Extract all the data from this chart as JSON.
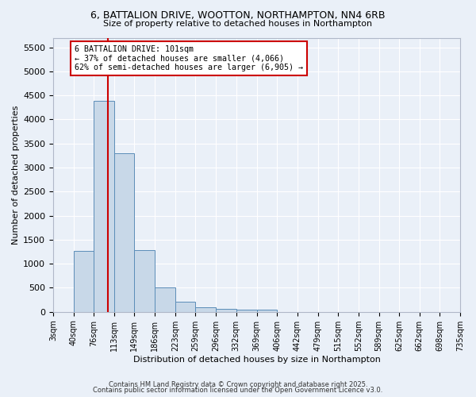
{
  "title": "6, BATTALION DRIVE, WOOTTON, NORTHAMPTON, NN4 6RB",
  "subtitle": "Size of property relative to detached houses in Northampton",
  "xlabel": "Distribution of detached houses by size in Northampton",
  "ylabel": "Number of detached properties",
  "bar_color": "#c8d8e8",
  "bar_edge_color": "#5b8db8",
  "background_color": "#eaf0f8",
  "grid_color": "#ffffff",
  "red_line_x": 101,
  "annotation_text": "6 BATTALION DRIVE: 101sqm\n← 37% of detached houses are smaller (4,066)\n62% of semi-detached houses are larger (6,905) →",
  "annotation_box_color": "#ffffff",
  "annotation_box_edge": "#cc0000",
  "bins": [
    3,
    40,
    76,
    113,
    149,
    186,
    223,
    259,
    296,
    332,
    369,
    406,
    442,
    479,
    515,
    552,
    589,
    625,
    662,
    698,
    735
  ],
  "counts": [
    0,
    1270,
    4380,
    3300,
    1280,
    500,
    210,
    90,
    60,
    50,
    50,
    0,
    0,
    0,
    0,
    0,
    0,
    0,
    0,
    0
  ],
  "ylim": [
    0,
    5700
  ],
  "yticks": [
    0,
    500,
    1000,
    1500,
    2000,
    2500,
    3000,
    3500,
    4000,
    4500,
    5000,
    5500
  ],
  "footer1": "Contains HM Land Registry data © Crown copyright and database right 2025.",
  "footer2": "Contains public sector information licensed under the Open Government Licence v3.0."
}
